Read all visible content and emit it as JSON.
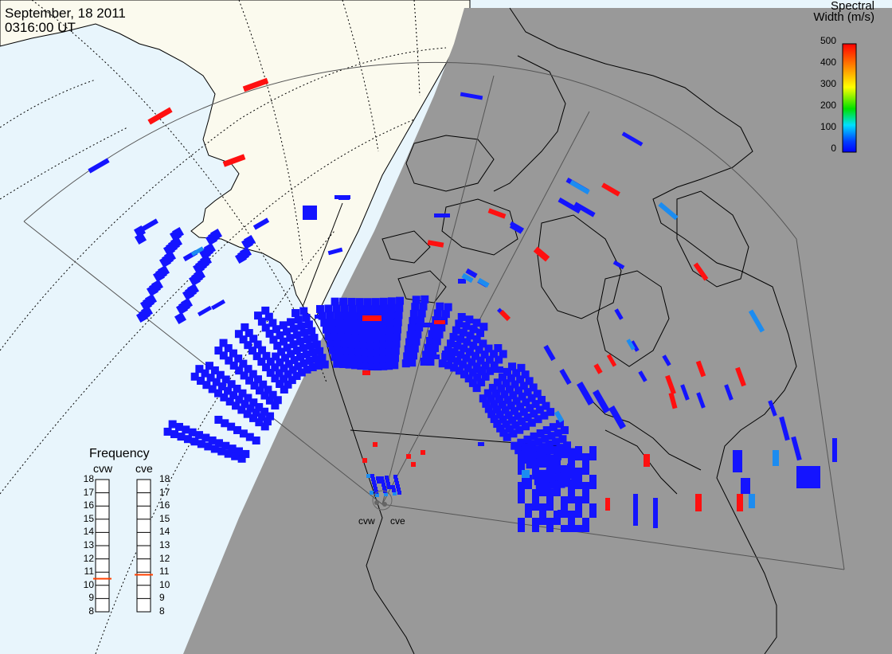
{
  "header": {
    "date": "September, 18 2011",
    "time": "0316:00 UT"
  },
  "colorbar": {
    "title_line1": "Spectral",
    "title_line2": "Width (m/s)",
    "ticks": [
      "500",
      "400",
      "300",
      "200",
      "100",
      "0"
    ],
    "stops": [
      "#ff0000",
      "#ff8000",
      "#ffff00",
      "#00e000",
      "#00e0ff",
      "#0040ff",
      "#0000ff"
    ]
  },
  "frequency_panel": {
    "title": "Frequency",
    "radars": [
      {
        "name": "cvw",
        "value_mhz": 10.5
      },
      {
        "name": "cve",
        "value_mhz": 10.8
      }
    ],
    "ticks": [
      "18",
      "17",
      "16",
      "15",
      "14",
      "13",
      "12",
      "11",
      "10",
      "9",
      "8"
    ],
    "marker_color": "#ff4000"
  },
  "sites": [
    {
      "label": "cvw"
    },
    {
      "label": "cve"
    }
  ],
  "colors": {
    "land_day": "#fbfaee",
    "ocean_day": "#e8f5fc",
    "night": "#999999",
    "high_width": "#ff1010",
    "low_width": "#1414ff",
    "mid_width": "#1c8cf0"
  }
}
